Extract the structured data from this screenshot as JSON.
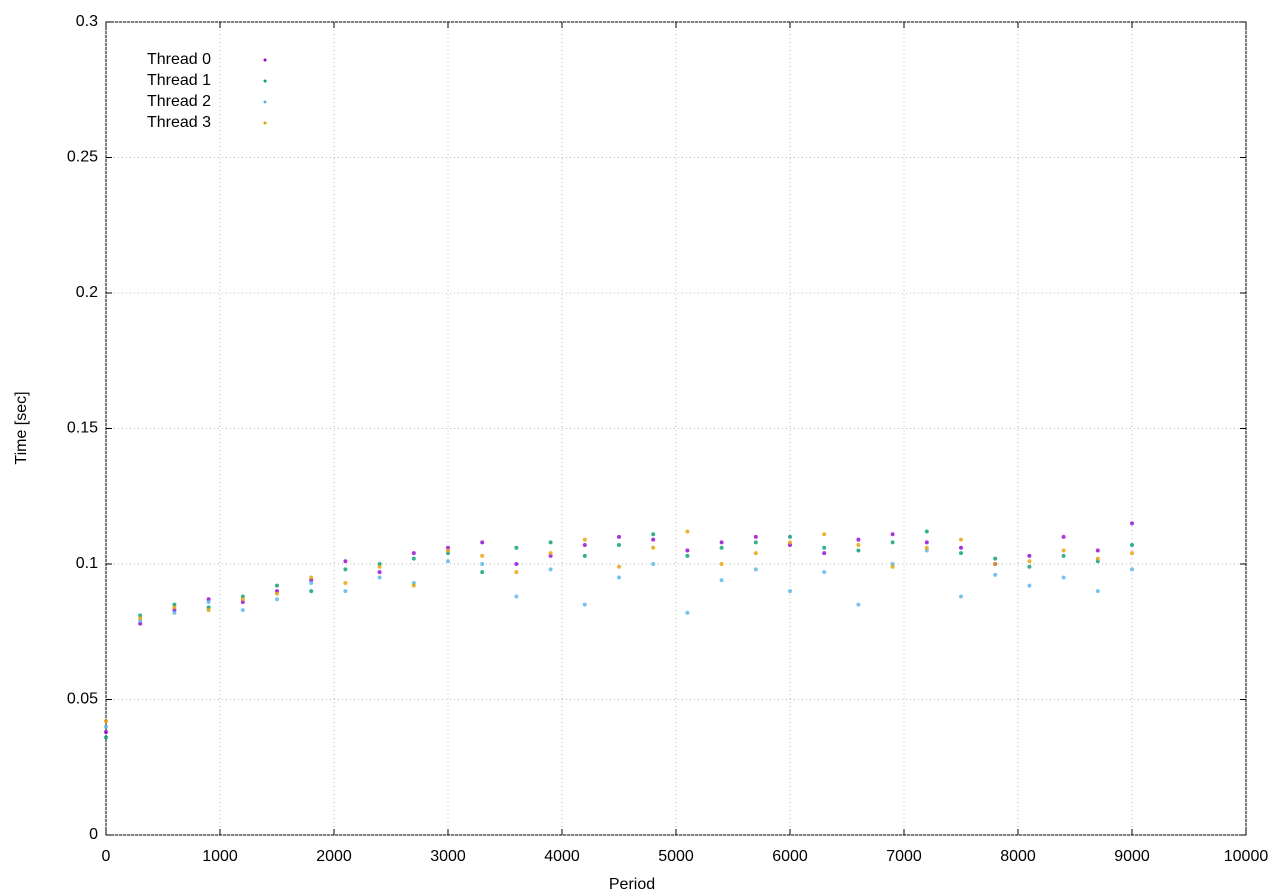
{
  "chart_data": {
    "type": "scatter",
    "x_label": "Period",
    "y_label": "Time [sec]",
    "x": [
      0,
      300,
      600,
      900,
      1200,
      1500,
      1800,
      2100,
      2400,
      2700,
      3000,
      3300,
      3600,
      3900,
      4200,
      4500,
      4800,
      5100,
      5400,
      5700,
      6000,
      6300,
      6600,
      6900,
      7200,
      7500,
      7800,
      8100,
      8400,
      8700,
      9000
    ],
    "series": [
      {
        "name": "Thread 0",
        "color": "#9400d3",
        "values": [
          0.038,
          0.078,
          0.083,
          0.087,
          0.086,
          0.09,
          0.094,
          0.101,
          0.097,
          0.104,
          0.106,
          0.108,
          0.1,
          0.103,
          0.107,
          0.11,
          0.109,
          0.105,
          0.108,
          0.11,
          0.107,
          0.104,
          0.109,
          0.111,
          0.108,
          0.106,
          0.1,
          0.103,
          0.11,
          0.105,
          0.115
        ]
      },
      {
        "name": "Thread 1",
        "color": "#009e73",
        "values": [
          0.036,
          0.081,
          0.085,
          0.084,
          0.088,
          0.092,
          0.09,
          0.098,
          0.1,
          0.102,
          0.104,
          0.097,
          0.106,
          0.108,
          0.103,
          0.107,
          0.111,
          0.103,
          0.106,
          0.108,
          0.11,
          0.106,
          0.105,
          0.108,
          0.112,
          0.104,
          0.102,
          0.099,
          0.103,
          0.101,
          0.107
        ]
      },
      {
        "name": "Thread 2",
        "color": "#56b4e9",
        "values": [
          0.04,
          0.079,
          0.082,
          0.086,
          0.083,
          0.087,
          0.093,
          0.09,
          0.095,
          0.093,
          0.101,
          0.1,
          0.088,
          0.098,
          0.085,
          0.095,
          0.1,
          0.082,
          0.094,
          0.098,
          0.09,
          0.097,
          0.085,
          0.1,
          0.105,
          0.088,
          0.096,
          0.092,
          0.095,
          0.09,
          0.098
        ]
      },
      {
        "name": "Thread 3",
        "color": "#e69f00",
        "values": [
          0.042,
          0.08,
          0.084,
          0.083,
          0.087,
          0.089,
          0.095,
          0.093,
          0.099,
          0.092,
          0.105,
          0.103,
          0.097,
          0.104,
          0.109,
          0.099,
          0.106,
          0.112,
          0.1,
          0.104,
          0.108,
          0.111,
          0.107,
          0.099,
          0.106,
          0.109,
          0.1,
          0.101,
          0.105,
          0.102,
          0.104
        ]
      }
    ],
    "xlim": [
      0,
      10000
    ],
    "xticks": [
      0,
      1000,
      2000,
      3000,
      4000,
      5000,
      6000,
      7000,
      8000,
      9000,
      10000
    ],
    "ylim": [
      0,
      0.3
    ],
    "yticks": [
      0,
      0.05,
      0.1,
      0.15,
      0.2,
      0.25,
      0.3
    ],
    "grid": true,
    "legend": "top-left"
  }
}
